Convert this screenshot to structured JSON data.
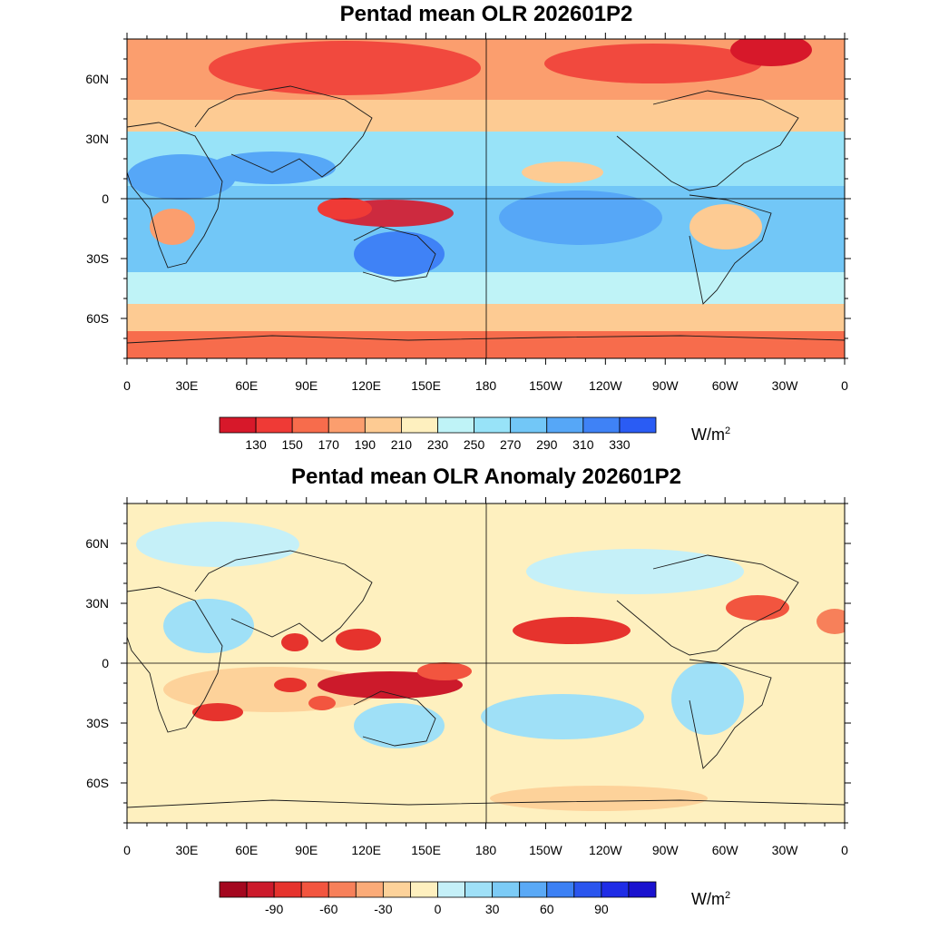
{
  "panels": [
    {
      "title": "Pentad mean OLR 202601P2",
      "lat_labels": [
        "60N",
        "30N",
        "0",
        "30S",
        "60S"
      ],
      "lon_labels": [
        "0",
        "30E",
        "60E",
        "90E",
        "120E",
        "150E",
        "180",
        "150W",
        "120W",
        "90W",
        "60W",
        "30W",
        "0"
      ],
      "colorbar": {
        "colors": [
          "#d7182a",
          "#ef3a36",
          "#f76c4c",
          "#fb9e6e",
          "#fdcb93",
          "#fef0bf",
          "#bff3f7",
          "#98e3f8",
          "#72c7f7",
          "#56a7f7",
          "#3f82f6",
          "#2a5cf4"
        ],
        "labels": [
          "130",
          "150",
          "170",
          "190",
          "210",
          "230",
          "250",
          "270",
          "290",
          "310",
          "330"
        ],
        "units": "W/m",
        "units_exp": "2"
      }
    },
    {
      "title": "Pentad mean OLR Anomaly 202601P2",
      "lat_labels": [
        "60N",
        "30N",
        "0",
        "30S",
        "60S"
      ],
      "lon_labels": [
        "0",
        "30E",
        "60E",
        "90E",
        "120E",
        "150E",
        "180",
        "150W",
        "120W",
        "90W",
        "60W",
        "30W",
        "0"
      ],
      "colorbar": {
        "colors": [
          "#a4071f",
          "#cc1a2b",
          "#e6332d",
          "#f2553f",
          "#f7805a",
          "#fbab78",
          "#fdd29a",
          "#fef0bf",
          "#c5f0f8",
          "#9fe0f7",
          "#7ccbf6",
          "#5aa9f6",
          "#3c80f4",
          "#2a55ee",
          "#1e2ce6",
          "#1a12cf"
        ],
        "labels": [
          "-90",
          "-60",
          "-30",
          "0",
          "30",
          "60",
          "90"
        ],
        "units": "W/m",
        "units_exp": "2"
      }
    }
  ],
  "map_palette": {
    "ocean_bg_top": "#fdd9a0",
    "land_line": "#1a1a1a"
  }
}
